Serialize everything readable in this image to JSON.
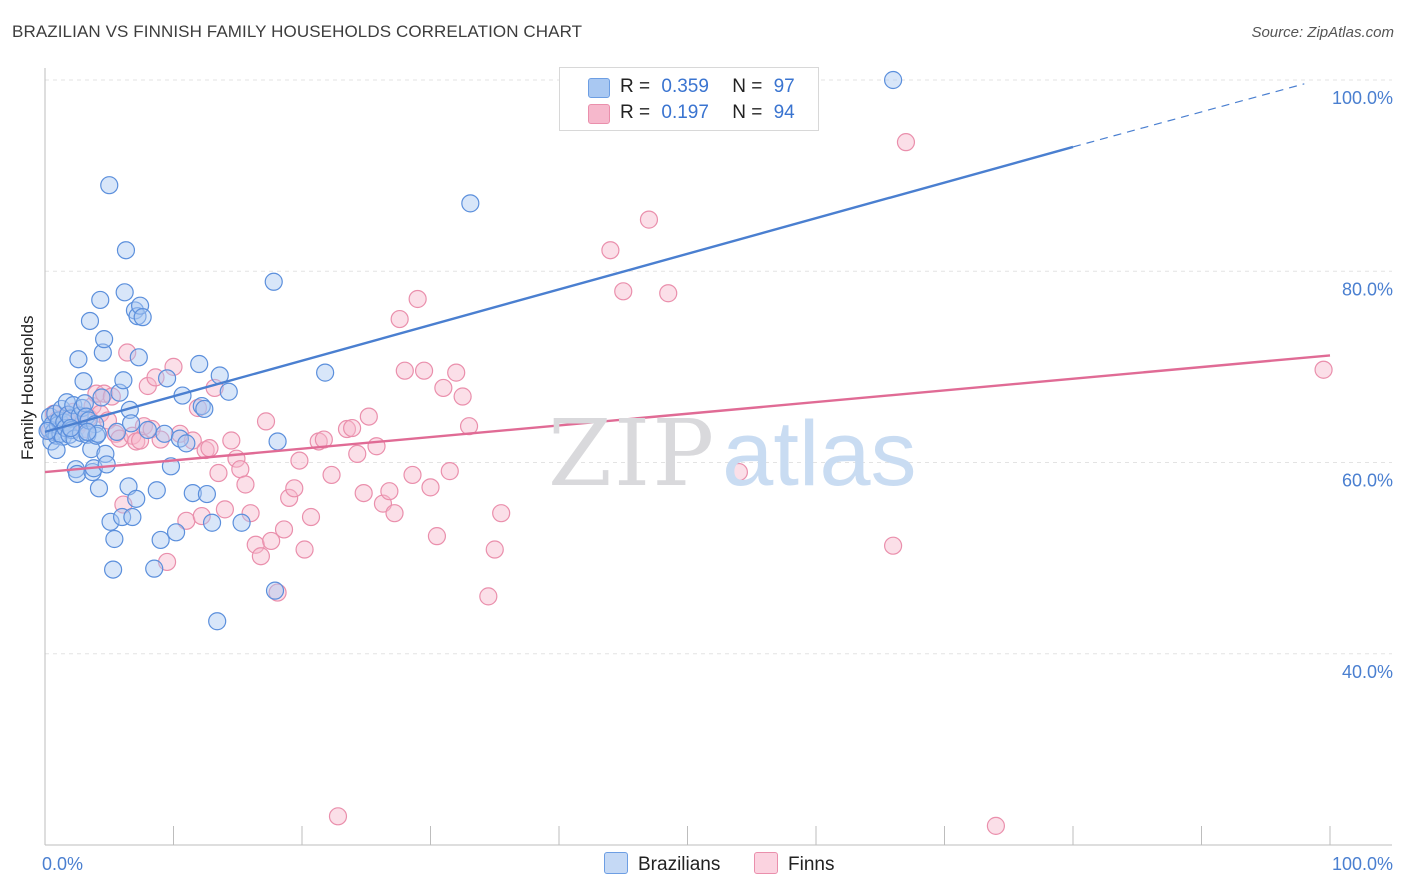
{
  "header": {
    "title": "BRAZILIAN VS FINNISH FAMILY HOUSEHOLDS CORRELATION CHART",
    "source": "Source: ZipAtlas.com"
  },
  "legend": {
    "rows": [
      {
        "r_label": "R =",
        "r_value": "0.359",
        "n_label": "N =",
        "n_value": "97",
        "color": "#a9c8f2"
      },
      {
        "r_label": "R =",
        "r_value": "0.197",
        "n_label": "N =",
        "n_value": "94",
        "color": "#f6b8cc"
      }
    ]
  },
  "bottom_legend": {
    "items": [
      {
        "label": "Brazilians",
        "color": "#a9c8f2"
      },
      {
        "label": "Finns",
        "color": "#f6b8cc"
      }
    ]
  },
  "watermark": {
    "zip": "ZIP",
    "atlas": "atlas"
  },
  "chart_data": {
    "type": "scatter",
    "title": "BRAZILIAN VS FINNISH FAMILY HOUSEHOLDS CORRELATION CHART",
    "xlabel": "",
    "ylabel": "Family Households",
    "xlim": [
      0,
      100
    ],
    "ylim": [
      20,
      102
    ],
    "x_tick_labels": [
      "0.0%",
      "100.0%"
    ],
    "y_ticks": [
      40,
      60,
      80,
      100
    ],
    "y_tick_labels": [
      "40.0%",
      "60.0%",
      "80.0%",
      "100.0%"
    ],
    "grid": true,
    "series": [
      {
        "name": "Brazilians",
        "color": "#4a7fd0",
        "fill": "#a9c8f2",
        "r": 0.359,
        "n": 97,
        "trend": {
          "x0": 0,
          "y0": 63.2,
          "x1": 80,
          "y1": 93.0,
          "dash_to_x": 98,
          "dash_to_y": 99.6
        },
        "points": [
          [
            0.3,
            63.5
          ],
          [
            0.4,
            64.8
          ],
          [
            0.5,
            62.2
          ],
          [
            0.6,
            64.0
          ],
          [
            0.7,
            63.2
          ],
          [
            0.8,
            65.1
          ],
          [
            0.9,
            62.8
          ],
          [
            1.0,
            63.9
          ],
          [
            1.1,
            64.4
          ],
          [
            1.2,
            63.0
          ],
          [
            1.3,
            65.6
          ],
          [
            1.4,
            62.7
          ],
          [
            1.5,
            64.2
          ],
          [
            1.6,
            63.6
          ],
          [
            1.7,
            66.3
          ],
          [
            1.8,
            65.0
          ],
          [
            1.9,
            62.9
          ],
          [
            2.0,
            64.6
          ],
          [
            2.1,
            63.4
          ],
          [
            2.2,
            66.0
          ],
          [
            2.3,
            62.5
          ],
          [
            2.4,
            59.3
          ],
          [
            2.5,
            58.8
          ],
          [
            2.6,
            70.8
          ],
          [
            2.7,
            64.9
          ],
          [
            2.8,
            63.1
          ],
          [
            2.9,
            65.7
          ],
          [
            3.0,
            68.5
          ],
          [
            3.1,
            66.2
          ],
          [
            3.2,
            64.8
          ],
          [
            3.3,
            62.9
          ],
          [
            3.4,
            64.4
          ],
          [
            3.5,
            74.8
          ],
          [
            3.6,
            61.4
          ],
          [
            3.7,
            59.0
          ],
          [
            3.8,
            59.4
          ],
          [
            3.9,
            64.0
          ],
          [
            4.0,
            62.8
          ],
          [
            4.1,
            63.0
          ],
          [
            4.2,
            57.3
          ],
          [
            4.3,
            77.0
          ],
          [
            4.4,
            66.8
          ],
          [
            4.5,
            71.5
          ],
          [
            4.6,
            72.9
          ],
          [
            4.7,
            60.9
          ],
          [
            4.8,
            59.8
          ],
          [
            5.0,
            89.0
          ],
          [
            5.1,
            53.8
          ],
          [
            5.3,
            48.8
          ],
          [
            5.4,
            52.0
          ],
          [
            5.6,
            63.2
          ],
          [
            5.8,
            67.3
          ],
          [
            6.0,
            54.3
          ],
          [
            6.1,
            68.6
          ],
          [
            6.2,
            77.8
          ],
          [
            6.3,
            82.2
          ],
          [
            6.5,
            57.5
          ],
          [
            6.6,
            65.5
          ],
          [
            6.7,
            64.1
          ],
          [
            6.8,
            54.3
          ],
          [
            7.0,
            75.9
          ],
          [
            7.1,
            56.2
          ],
          [
            7.2,
            75.3
          ],
          [
            7.3,
            71.0
          ],
          [
            7.4,
            76.4
          ],
          [
            7.6,
            75.2
          ],
          [
            8.0,
            63.4
          ],
          [
            8.5,
            48.9
          ],
          [
            8.7,
            57.1
          ],
          [
            9.0,
            51.9
          ],
          [
            9.3,
            63.0
          ],
          [
            9.5,
            68.8
          ],
          [
            9.8,
            59.6
          ],
          [
            10.2,
            52.7
          ],
          [
            10.5,
            62.5
          ],
          [
            10.7,
            67.0
          ],
          [
            11.0,
            62.0
          ],
          [
            11.5,
            56.8
          ],
          [
            12.0,
            70.3
          ],
          [
            12.2,
            65.9
          ],
          [
            12.4,
            65.6
          ],
          [
            12.6,
            56.7
          ],
          [
            13.0,
            53.7
          ],
          [
            13.4,
            43.4
          ],
          [
            13.6,
            69.1
          ],
          [
            14.3,
            67.4
          ],
          [
            15.3,
            53.7
          ],
          [
            17.8,
            78.9
          ],
          [
            17.9,
            46.6
          ],
          [
            18.1,
            62.2
          ],
          [
            21.8,
            69.4
          ],
          [
            33.1,
            87.1
          ],
          [
            66.0,
            100.0
          ],
          [
            0.2,
            63.3
          ],
          [
            0.9,
            61.3
          ],
          [
            2.0,
            63.6
          ],
          [
            3.3,
            63.2
          ]
        ]
      },
      {
        "name": "Finns",
        "color": "#e06b95",
        "fill": "#f6b8cc",
        "r": 0.197,
        "n": 94,
        "trend": {
          "x0": 0,
          "y0": 59.0,
          "x1": 100,
          "y1": 71.2
        },
        "points": [
          [
            0.4,
            63.3
          ],
          [
            0.7,
            65.1
          ],
          [
            1.0,
            64.5
          ],
          [
            1.3,
            63.8
          ],
          [
            1.6,
            64.8
          ],
          [
            1.9,
            64.2
          ],
          [
            2.2,
            65.3
          ],
          [
            2.5,
            63.7
          ],
          [
            2.8,
            64.2
          ],
          [
            3.1,
            63.5
          ],
          [
            3.4,
            64.7
          ],
          [
            3.7,
            65.9
          ],
          [
            4.0,
            67.2
          ],
          [
            4.3,
            65.1
          ],
          [
            4.6,
            67.2
          ],
          [
            4.9,
            64.4
          ],
          [
            5.2,
            66.9
          ],
          [
            5.5,
            63.0
          ],
          [
            5.8,
            62.5
          ],
          [
            6.1,
            55.6
          ],
          [
            6.4,
            71.5
          ],
          [
            6.8,
            62.8
          ],
          [
            7.1,
            62.2
          ],
          [
            7.4,
            62.3
          ],
          [
            7.7,
            63.8
          ],
          [
            8.0,
            68.0
          ],
          [
            8.3,
            63.5
          ],
          [
            8.6,
            68.9
          ],
          [
            9.0,
            62.4
          ],
          [
            9.5,
            49.6
          ],
          [
            10.0,
            70.0
          ],
          [
            10.5,
            63.0
          ],
          [
            11.0,
            53.9
          ],
          [
            11.5,
            62.3
          ],
          [
            11.9,
            65.7
          ],
          [
            12.2,
            54.4
          ],
          [
            12.5,
            61.3
          ],
          [
            12.8,
            61.5
          ],
          [
            13.2,
            67.8
          ],
          [
            13.5,
            58.9
          ],
          [
            14.0,
            55.1
          ],
          [
            14.5,
            62.3
          ],
          [
            14.9,
            60.4
          ],
          [
            15.2,
            59.3
          ],
          [
            15.6,
            57.7
          ],
          [
            16.0,
            54.7
          ],
          [
            16.4,
            51.4
          ],
          [
            16.8,
            50.2
          ],
          [
            17.2,
            64.3
          ],
          [
            17.6,
            51.8
          ],
          [
            18.1,
            46.4
          ],
          [
            18.6,
            53.0
          ],
          [
            19.0,
            56.3
          ],
          [
            19.4,
            57.3
          ],
          [
            19.8,
            60.2
          ],
          [
            20.2,
            50.9
          ],
          [
            20.7,
            54.3
          ],
          [
            21.3,
            62.2
          ],
          [
            21.7,
            62.4
          ],
          [
            22.3,
            58.7
          ],
          [
            22.8,
            23.0
          ],
          [
            23.5,
            63.5
          ],
          [
            23.9,
            63.6
          ],
          [
            24.3,
            60.9
          ],
          [
            24.8,
            56.8
          ],
          [
            25.2,
            64.8
          ],
          [
            25.8,
            61.7
          ],
          [
            26.3,
            55.7
          ],
          [
            26.8,
            57.0
          ],
          [
            27.2,
            54.7
          ],
          [
            27.6,
            75.0
          ],
          [
            28.0,
            69.6
          ],
          [
            28.6,
            58.7
          ],
          [
            29.0,
            77.1
          ],
          [
            29.5,
            69.6
          ],
          [
            30.0,
            57.4
          ],
          [
            30.5,
            52.3
          ],
          [
            31.0,
            67.8
          ],
          [
            31.5,
            59.1
          ],
          [
            32.0,
            69.4
          ],
          [
            32.5,
            66.9
          ],
          [
            33.0,
            63.8
          ],
          [
            34.5,
            46.0
          ],
          [
            35.0,
            50.9
          ],
          [
            35.5,
            54.7
          ],
          [
            44.0,
            82.2
          ],
          [
            45.0,
            77.9
          ],
          [
            47.0,
            85.4
          ],
          [
            48.5,
            77.7
          ],
          [
            54.0,
            59.0
          ],
          [
            66.0,
            51.3
          ],
          [
            67.0,
            93.5
          ],
          [
            99.5,
            69.7
          ],
          [
            74.0,
            22.0
          ]
        ]
      }
    ]
  }
}
